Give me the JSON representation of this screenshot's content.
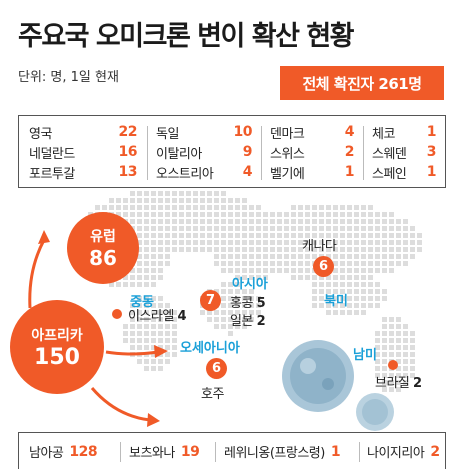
{
  "title": "주요국 오미크론 변이 확산 현황",
  "unit": "단위: 명, 1일 현재",
  "total": "전체 확진자 261명",
  "europe_columns": [
    [
      {
        "name": "영국",
        "count": "22"
      },
      {
        "name": "네덜란드",
        "count": "16"
      },
      {
        "name": "포르투갈",
        "count": "13"
      }
    ],
    [
      {
        "name": "독일",
        "count": "10"
      },
      {
        "name": "이탈리아",
        "count": "9"
      },
      {
        "name": "오스트리아",
        "count": "4"
      }
    ],
    [
      {
        "name": "덴마크",
        "count": "4"
      },
      {
        "name": "스위스",
        "count": "2"
      },
      {
        "name": "벨기에",
        "count": "1"
      }
    ],
    [
      {
        "name": "체코",
        "count": "1"
      },
      {
        "name": "스웨덴",
        "count": "3"
      },
      {
        "name": "스페인",
        "count": "1"
      }
    ]
  ],
  "europe": {
    "label": "유럽",
    "count": "86"
  },
  "africa": {
    "label": "아프리카",
    "count": "150"
  },
  "middle_east": {
    "region": "중동",
    "country": "이스라엘",
    "count": "4"
  },
  "asia": {
    "region": "아시아",
    "total": "7",
    "countries": [
      {
        "name": "홍콩",
        "count": "5"
      },
      {
        "name": "일본",
        "count": "2"
      }
    ]
  },
  "oceania": {
    "region": "오세아니아",
    "total": "6",
    "country": "호주"
  },
  "north_america": {
    "region": "북미",
    "total": "6",
    "country": "캐나다"
  },
  "south_america": {
    "region": "남미",
    "country": "브라질",
    "count": "2"
  },
  "africa_countries": [
    {
      "name": "남아공",
      "count": "128"
    },
    {
      "name": "보츠와나",
      "count": "19"
    },
    {
      "name": "레위니옹(프랑스령)",
      "count": "1"
    },
    {
      "name": "나이지리아",
      "count": "2"
    }
  ],
  "colors": {
    "accent": "#f05a28",
    "region": "#1aa0d8",
    "map": "#dddddd",
    "virus": "#8fb3c9"
  }
}
